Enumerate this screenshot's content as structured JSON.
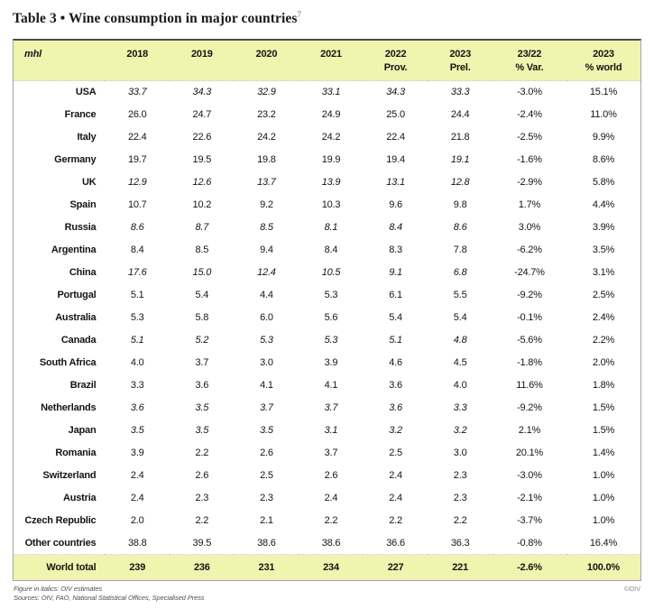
{
  "title": {
    "text": "Table 3 • Wine consumption in major countries",
    "footnote_marker": "7"
  },
  "table": {
    "unit_label": "mhl",
    "columns": [
      {
        "label": "2018",
        "sub": ""
      },
      {
        "label": "2019",
        "sub": ""
      },
      {
        "label": "2020",
        "sub": ""
      },
      {
        "label": "2021",
        "sub": ""
      },
      {
        "label": "2022",
        "sub": "Prov."
      },
      {
        "label": "2023",
        "sub": "Prel."
      },
      {
        "label": "23/22",
        "sub": "% Var."
      },
      {
        "label": "2023",
        "sub": "% world"
      }
    ],
    "rows": [
      {
        "country": "USA",
        "values": [
          "33.7",
          "34.3",
          "32.9",
          "33.1",
          "34.3",
          "33.3",
          "-3.0%",
          "15.1%"
        ],
        "italics": [
          true,
          true,
          true,
          true,
          true,
          true
        ]
      },
      {
        "country": "France",
        "values": [
          "26.0",
          "24.7",
          "23.2",
          "24.9",
          "25.0",
          "24.4",
          "-2.4%",
          "11.0%"
        ]
      },
      {
        "country": "Italy",
        "values": [
          "22.4",
          "22.6",
          "24.2",
          "24.2",
          "22.4",
          "21.8",
          "-2.5%",
          "9.9%"
        ]
      },
      {
        "country": "Germany",
        "values": [
          "19.7",
          "19.5",
          "19.8",
          "19.9",
          "19.4",
          "19.1",
          "-1.6%",
          "8.6%"
        ],
        "italics": [
          false,
          false,
          false,
          false,
          false,
          true
        ]
      },
      {
        "country": "UK",
        "values": [
          "12.9",
          "12.6",
          "13.7",
          "13.9",
          "13.1",
          "12.8",
          "-2.9%",
          "5.8%"
        ],
        "italics": [
          true,
          true,
          true,
          true,
          true,
          true
        ]
      },
      {
        "country": "Spain",
        "values": [
          "10.7",
          "10.2",
          "9.2",
          "10.3",
          "9.6",
          "9.8",
          "1.7%",
          "4.4%"
        ]
      },
      {
        "country": "Russia",
        "values": [
          "8.6",
          "8.7",
          "8.5",
          "8.1",
          "8.4",
          "8.6",
          "3.0%",
          "3.9%"
        ],
        "italics": [
          true,
          true,
          true,
          true,
          true,
          true
        ]
      },
      {
        "country": "Argentina",
        "values": [
          "8.4",
          "8.5",
          "9.4",
          "8.4",
          "8.3",
          "7.8",
          "-6.2%",
          "3.5%"
        ]
      },
      {
        "country": "China",
        "values": [
          "17.6",
          "15.0",
          "12.4",
          "10.5",
          "9.1",
          "6.8",
          "-24.7%",
          "3.1%"
        ],
        "italics": [
          true,
          true,
          true,
          true,
          true,
          true
        ]
      },
      {
        "country": "Portugal",
        "values": [
          "5.1",
          "5.4",
          "4.4",
          "5.3",
          "6.1",
          "5.5",
          "-9.2%",
          "2.5%"
        ]
      },
      {
        "country": "Australia",
        "values": [
          "5.3",
          "5.8",
          "6.0",
          "5.6",
          "5.4",
          "5.4",
          "-0.1%",
          "2.4%"
        ]
      },
      {
        "country": "Canada",
        "values": [
          "5.1",
          "5.2",
          "5.3",
          "5.3",
          "5.1",
          "4.8",
          "-5.6%",
          "2.2%"
        ],
        "italics": [
          true,
          true,
          true,
          true,
          true,
          true
        ]
      },
      {
        "country": "South Africa",
        "values": [
          "4.0",
          "3.7",
          "3.0",
          "3.9",
          "4.6",
          "4.5",
          "-1.8%",
          "2.0%"
        ]
      },
      {
        "country": "Brazil",
        "values": [
          "3.3",
          "3.6",
          "4.1",
          "4.1",
          "3.6",
          "4.0",
          "11.6%",
          "1.8%"
        ]
      },
      {
        "country": "Netherlands",
        "values": [
          "3.6",
          "3.5",
          "3.7",
          "3.7",
          "3.6",
          "3.3",
          "-9.2%",
          "1.5%"
        ],
        "italics": [
          true,
          true,
          true,
          true,
          true,
          true
        ]
      },
      {
        "country": "Japan",
        "values": [
          "3.5",
          "3.5",
          "3.5",
          "3.1",
          "3.2",
          "3.2",
          "2.1%",
          "1.5%"
        ],
        "italics": [
          true,
          true,
          true,
          true,
          true,
          true
        ]
      },
      {
        "country": "Romania",
        "values": [
          "3.9",
          "2.2",
          "2.6",
          "3.7",
          "2.5",
          "3.0",
          "20.1%",
          "1.4%"
        ]
      },
      {
        "country": "Switzerland",
        "values": [
          "2.4",
          "2.6",
          "2.5",
          "2.6",
          "2.4",
          "2.3",
          "-3.0%",
          "1.0%"
        ]
      },
      {
        "country": "Austria",
        "values": [
          "2.4",
          "2.3",
          "2.3",
          "2.4",
          "2.4",
          "2.3",
          "-2.1%",
          "1.0%"
        ]
      },
      {
        "country": "Czech Republic",
        "values": [
          "2.0",
          "2.2",
          "2.1",
          "2.2",
          "2.2",
          "2.2",
          "-3.7%",
          "1.0%"
        ]
      },
      {
        "country": "Other countries",
        "values": [
          "38.8",
          "39.5",
          "38.6",
          "38.6",
          "36.6",
          "36.3",
          "-0.8%",
          "16.4%"
        ]
      },
      {
        "country": "World total",
        "values": [
          "239",
          "236",
          "231",
          "234",
          "227",
          "221",
          "-2.6%",
          "100.0%"
        ],
        "total": true
      }
    ]
  },
  "footer": {
    "note1": "Figure in italics: OIV estimates",
    "note2": "Sources: OIV, FAO, National Statistical Offices, Specialised Press",
    "credit": "©OIV"
  },
  "colors": {
    "header_bg": "#f0f4ae",
    "total_bg": "#f0f4ae",
    "outer_border": "#a6a6a6",
    "top_border": "#4d4d4d"
  }
}
